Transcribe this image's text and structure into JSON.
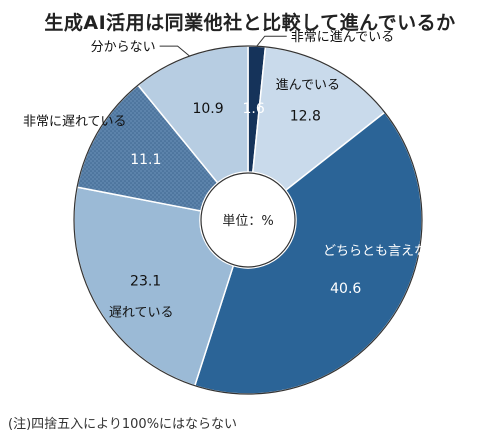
{
  "chart_data": {
    "type": "pie",
    "title": "生成AI活用は同業他社と比較して進んでいるか",
    "center_label": "単位：%",
    "note": "(注)四捨五入により100%にはならない",
    "slices": [
      {
        "label": "非常に進んでいる",
        "value": 1.6,
        "color": "#15335a"
      },
      {
        "label": "進んでいる",
        "value": 12.8,
        "color": "#c9daeb"
      },
      {
        "label": "どちらとも言えない",
        "value": 40.6,
        "color": "#2b6497"
      },
      {
        "label": "遅れている",
        "value": 23.1,
        "color": "#9bbad6"
      },
      {
        "label": "非常に遅れている",
        "value": 11.1,
        "color": "#5c83ab"
      },
      {
        "label": "分からない",
        "value": 10.9,
        "color": "#b7cde2"
      }
    ]
  }
}
